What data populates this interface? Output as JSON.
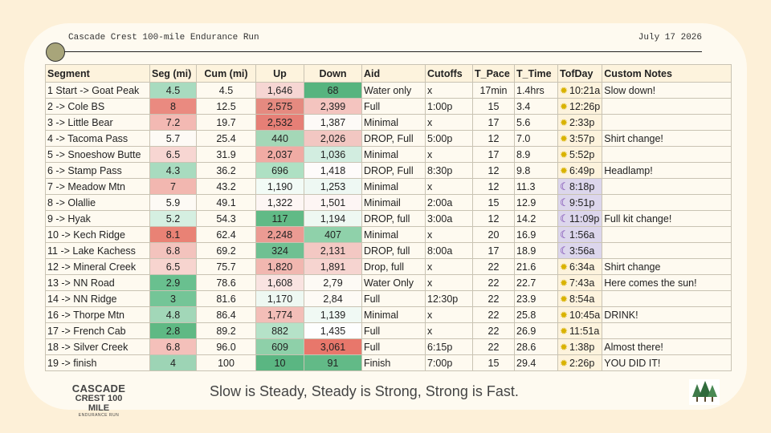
{
  "header": {
    "title": "Cascade Crest 100-mile Endurance Run",
    "date": "July 17 2026"
  },
  "columns": [
    "Segment",
    "Seg (mi)",
    "Cum (mi)",
    "Up",
    "Down",
    "Aid",
    "Cutoffs",
    "T_Pace",
    "T_Time",
    "TofDay",
    "Custom Notes"
  ],
  "rows": [
    {
      "segment": "1 Start -> Goat Peak",
      "seg": "4.5",
      "cum": "4.5",
      "up": "1,646",
      "down": "68",
      "aid": "Water only",
      "cutoff": "x",
      "pace": "17min",
      "time": "1.4hrs",
      "tod": "10:21a",
      "icon": "sun",
      "notes": "Slow down!"
    },
    {
      "segment": "2 -> Cole BS",
      "seg": "8",
      "cum": "12.5",
      "up": "2,575",
      "down": "2,399",
      "aid": "Full",
      "cutoff": "1:00p",
      "pace": "15",
      "time": "3.4",
      "tod": "12:26p",
      "icon": "sun",
      "notes": ""
    },
    {
      "segment": "3 -> Little Bear",
      "seg": "7.2",
      "cum": "19.7",
      "up": "2,532",
      "down": "1,387",
      "aid": "Minimal",
      "cutoff": "x",
      "pace": "17",
      "time": "5.6",
      "tod": "2:33p",
      "icon": "sun",
      "notes": ""
    },
    {
      "segment": "4 -> Tacoma Pass",
      "seg": "5.7",
      "cum": "25.4",
      "up": "440",
      "down": "2,026",
      "aid": "DROP, Full",
      "cutoff": "5:00p",
      "pace": "12",
      "time": "7.0",
      "tod": "3:57p",
      "icon": "sun",
      "notes": "Shirt change!"
    },
    {
      "segment": "5 -> Snoeshow Butte",
      "seg": "6.5",
      "cum": "31.9",
      "up": "2,037",
      "down": "1,036",
      "aid": "Minimal",
      "cutoff": "x",
      "pace": "17",
      "time": "8.9",
      "tod": "5:52p",
      "icon": "sun",
      "notes": ""
    },
    {
      "segment": "6 -> Stamp Pass",
      "seg": "4.3",
      "cum": "36.2",
      "up": "696",
      "down": "1,418",
      "aid": "DROP, Full",
      "cutoff": "8:30p",
      "pace": "12",
      "time": "9.8",
      "tod": "6:49p",
      "icon": "sun",
      "notes": "Headlamp!"
    },
    {
      "segment": "7 -> Meadow Mtn",
      "seg": "7",
      "cum": "43.2",
      "up": "1,190",
      "down": "1,253",
      "aid": "Minimal",
      "cutoff": "x",
      "pace": "12",
      "time": "11.3",
      "tod": "8:18p",
      "icon": "moon",
      "notes": ""
    },
    {
      "segment": "8 -> Olallie",
      "seg": "5.9",
      "cum": "49.1",
      "up": "1,322",
      "down": "1,501",
      "aid": "Minimail",
      "cutoff": "2:00a",
      "pace": "15",
      "time": "12.9",
      "tod": "9:51p",
      "icon": "moon",
      "notes": ""
    },
    {
      "segment": "9 -> Hyak",
      "seg": "5.2",
      "cum": "54.3",
      "up": "117",
      "down": "1,194",
      "aid": "DROP, full",
      "cutoff": "3:00a",
      "pace": "12",
      "time": "14.2",
      "tod": "11:09p",
      "icon": "moon",
      "notes": "Full kit change!"
    },
    {
      "segment": "10 -> Kech Ridge",
      "seg": "8.1",
      "cum": "62.4",
      "up": "2,248",
      "down": "407",
      "aid": "Minimal",
      "cutoff": "x",
      "pace": "20",
      "time": "16.9",
      "tod": "1:56a",
      "icon": "moon",
      "notes": ""
    },
    {
      "segment": "11 -> Lake Kachess",
      "seg": "6.8",
      "cum": "69.2",
      "up": "324",
      "down": "2,131",
      "aid": "DROP, full",
      "cutoff": "8:00a",
      "pace": "17",
      "time": "18.9",
      "tod": "3:56a",
      "icon": "moon",
      "notes": ""
    },
    {
      "segment": "12 -> Mineral Creek",
      "seg": "6.5",
      "cum": "75.7",
      "up": "1,820",
      "down": "1,891",
      "aid": "Drop, full",
      "cutoff": "x",
      "pace": "22",
      "time": "21.6",
      "tod": "6:34a",
      "icon": "sun",
      "notes": "Shirt change"
    },
    {
      "segment": "13 -> NN Road",
      "seg": "2.9",
      "cum": "78.6",
      "up": "1,608",
      "down": "2,79",
      "aid": "Water Only",
      "cutoff": "x",
      "pace": "22",
      "time": "22.7",
      "tod": "7:43a",
      "icon": "sun",
      "notes": "Here comes the sun!"
    },
    {
      "segment": "14 -> NN Ridge",
      "seg": "3",
      "cum": "81.6",
      "up": "1,170",
      "down": "2,84",
      "aid": "Full",
      "cutoff": "12:30p",
      "pace": "22",
      "time": "23.9",
      "tod": "8:54a",
      "icon": "sun",
      "notes": ""
    },
    {
      "segment": "16 -> Thorpe Mtn",
      "seg": "4.8",
      "cum": "86.4",
      "up": "1,774",
      "down": "1,139",
      "aid": "Minimal",
      "cutoff": "x",
      "pace": "22",
      "time": "25.8",
      "tod": "10:45a",
      "icon": "sun",
      "notes": "DRINK!"
    },
    {
      "segment": "17 -> French Cab",
      "seg": "2.8",
      "cum": "89.2",
      "up": "882",
      "down": "1,435",
      "aid": "Full",
      "cutoff": "x",
      "pace": "22",
      "time": "26.9",
      "tod": "11:51a",
      "icon": "sun",
      "notes": ""
    },
    {
      "segment": "18 -> Silver Creek",
      "seg": "6.8",
      "cum": "96.0",
      "up": "609",
      "down": "3,061",
      "aid": "Full",
      "cutoff": "6:15p",
      "pace": "22",
      "time": "28.6",
      "tod": "1:38p",
      "icon": "sun",
      "notes": "Almost there!"
    },
    {
      "segment": "19 -> finish",
      "seg": "4",
      "cum": "100",
      "up": "10",
      "down": "91",
      "aid": "Finish",
      "cutoff": "7:00p",
      "pace": "15",
      "time": "29.4",
      "tod": "2:26p",
      "icon": "sun",
      "notes": "YOU DID IT!"
    }
  ],
  "colors": {
    "seg": [
      "#a8dbbf",
      "#ea8a80",
      "#f3b9b3",
      "#fdfaf5",
      "#f7d6d2",
      "#a8dbbf",
      "#f2b7b0",
      "#fdfaf5",
      "#d5efe1",
      "#e98275",
      "#f3c3bd",
      "#f7d4cf",
      "#69c08f",
      "#74c597",
      "#a2d7b8",
      "#5fb984",
      "#f4c0ba",
      "#9dd4b5"
    ],
    "up": [
      "#f6d6d3",
      "#e58a80",
      "#e67f76",
      "#a4d7b7",
      "#f0aba4",
      "#aee0c3",
      "#f2fbf6",
      "#fdf6f4",
      "#61ba86",
      "#eb9b93",
      "#6fc092",
      "#f1b7b0",
      "#f9e3e1",
      "#eef8f2",
      "#f3beb8",
      "#b5e2c8",
      "#8ed0a9",
      "#5ab682"
    ],
    "down": [
      "#57b47f",
      "#f4c4bf",
      "#fdfaf7",
      "#f2c7c2",
      "#d2ede0",
      "#fefbfa",
      "#eef8f3",
      "#fdf5f4",
      "#eef8f2",
      "#8fd1aa",
      "#f3c8c3",
      "#f6d4d0",
      "#fdfaf5",
      "#fdfaf5",
      "#f0f9f4",
      "#fefefe",
      "#e8776b",
      "#62ba87"
    ]
  },
  "footer": {
    "quote": "Slow is Steady, Steady is Strong, Strong is Fast.",
    "logo_line1": "CASCADE",
    "logo_line2": "CREST 100 MILE",
    "logo_line3": "ENDURANCE RUN"
  },
  "icons": {
    "sun": "sun-icon",
    "moon": "moon-icon",
    "trees": "trees-icon"
  }
}
